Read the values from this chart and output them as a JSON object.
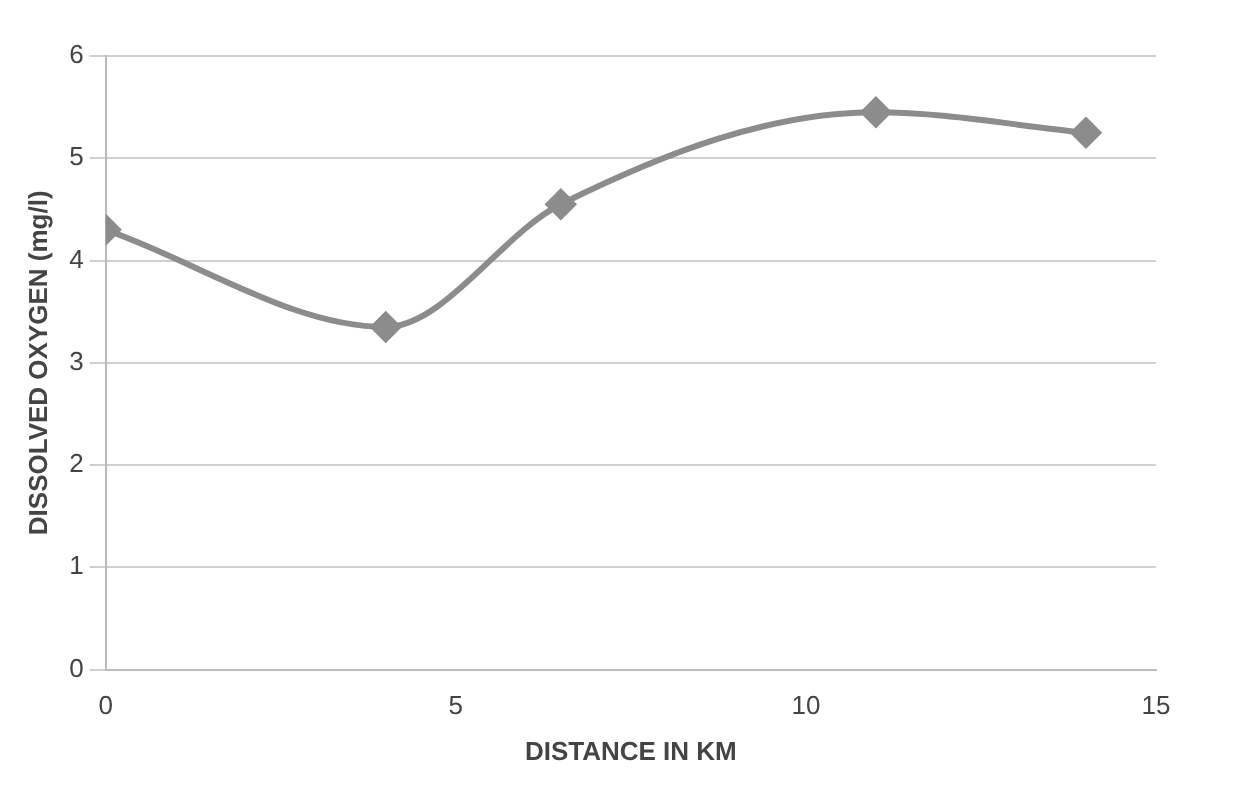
{
  "chart_data": {
    "type": "line",
    "xlabel": "DISTANCE IN KM",
    "ylabel": "DISSOLVED OXYGEN (mg/l)",
    "x": [
      0,
      4,
      6.5,
      11,
      14
    ],
    "series": [
      {
        "color": "#8c8c8c",
        "values": [
          4.3,
          3.35,
          4.55,
          5.45,
          5.25
        ]
      }
    ],
    "xlim": [
      0,
      15
    ],
    "xticks": [
      0,
      5,
      10,
      15
    ],
    "ylim": [
      0,
      6
    ],
    "yticks": [
      0,
      1,
      2,
      3,
      4,
      5,
      6
    ],
    "grid": "y",
    "legend": false,
    "marker": "diamond",
    "line_style": "solid"
  }
}
